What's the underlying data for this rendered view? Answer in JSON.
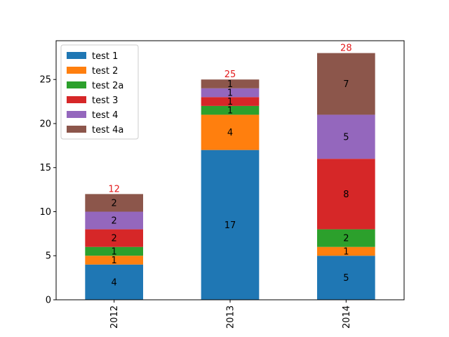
{
  "chart_data": {
    "type": "bar",
    "stacked": true,
    "categories": [
      "2012",
      "2013",
      "2014"
    ],
    "series": [
      {
        "name": "test 1",
        "color": "#1f77b4",
        "values": [
          4,
          17,
          5
        ]
      },
      {
        "name": "test 2",
        "color": "#ff7f0e",
        "values": [
          1,
          4,
          1
        ]
      },
      {
        "name": "test 2a",
        "color": "#2ca02c",
        "values": [
          1,
          1,
          2
        ]
      },
      {
        "name": "test 3",
        "color": "#d62728",
        "values": [
          2,
          1,
          8
        ]
      },
      {
        "name": "test 4",
        "color": "#9467bd",
        "values": [
          2,
          1,
          5
        ]
      },
      {
        "name": "test 4a",
        "color": "#8c564b",
        "values": [
          2,
          1,
          7
        ]
      }
    ],
    "totals": [
      12,
      25,
      28
    ],
    "total_label_color": "#e31a1c",
    "ylim": [
      0,
      29.4
    ],
    "yticks": [
      0,
      5,
      10,
      15,
      20,
      25
    ],
    "xtick_rotation": "vertical",
    "grid": false,
    "legend_position": "upper-left",
    "title": "",
    "xlabel": "",
    "ylabel": ""
  }
}
